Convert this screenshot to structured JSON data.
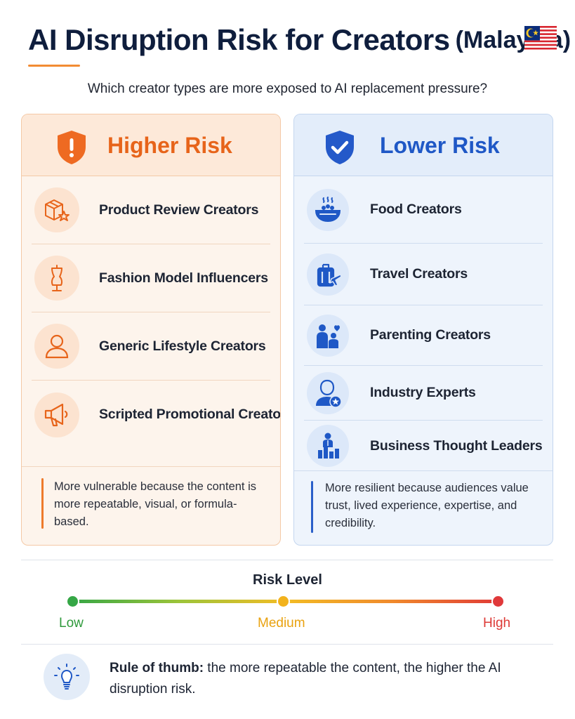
{
  "header": {
    "title": "AI Disruption Risk for Creators",
    "title_suffix": "(Malaysia)",
    "flag_icon": "malaysia-flag-icon",
    "subtitle": "Which creator types are more exposed to AI replacement pressure?"
  },
  "higher_risk": {
    "title": "Higher Risk",
    "color": "#e7641a",
    "items": [
      {
        "label": "Product Review Creators",
        "icon": "box-star-icon"
      },
      {
        "label": "Fashion Model Influencers",
        "icon": "mannequin-icon"
      },
      {
        "label": "Generic Lifestyle Creators",
        "icon": "person-icon"
      },
      {
        "label": "Scripted Promotional Creators",
        "icon": "megaphone-icon"
      }
    ],
    "note": "More vulnerable because the content is more repeatable, visual, or formula-based."
  },
  "lower_risk": {
    "title": "Lower Risk",
    "color": "#1f58c6",
    "items": [
      {
        "label": "Food Creators",
        "icon": "food-bowl-icon"
      },
      {
        "label": "Travel Creators",
        "icon": "luggage-plane-icon"
      },
      {
        "label": "Parenting Creators",
        "icon": "parent-child-icon"
      },
      {
        "label": "Industry Experts",
        "icon": "expert-badge-icon"
      },
      {
        "label": "Business Thought Leaders",
        "icon": "leader-chart-icon"
      }
    ],
    "note": "More resilient because audiences value trust, lived experience, expertise, and credibility."
  },
  "risk_scale": {
    "title": "Risk Level",
    "levels": [
      "Low",
      "Medium",
      "High"
    ],
    "colors": [
      "#35a746",
      "#f2b21c",
      "#e0393a"
    ]
  },
  "rule": {
    "lead": "Rule of thumb:",
    "text": " the more repeatable the content, the higher the AI disruption risk."
  }
}
